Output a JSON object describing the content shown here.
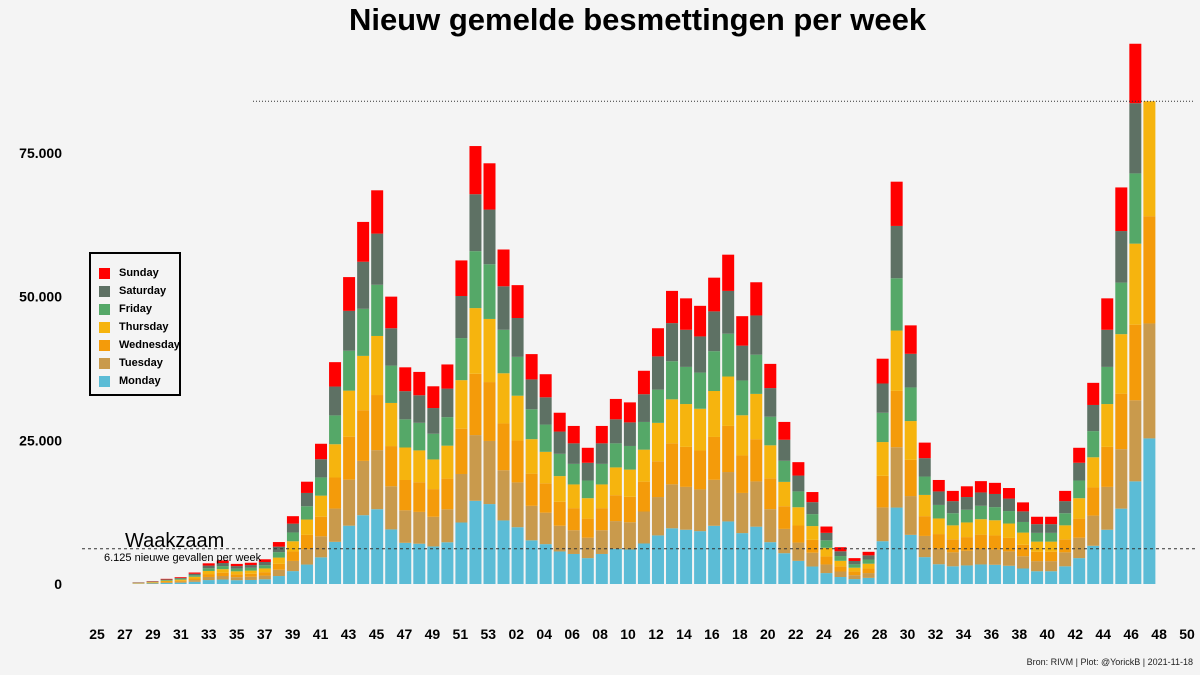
{
  "chart_data": {
    "type": "bar",
    "stacked": true,
    "title": "Nieuw gemelde besmettingen per week",
    "source": "Bron: RIVM | Plot: @YorickB |  2021-11-18",
    "ylim": [
      0,
      95000
    ],
    "y_ticks": [
      0,
      25000,
      50000,
      75000
    ],
    "y_tick_labels": [
      "0",
      "25.000",
      "50.000",
      "75.000"
    ],
    "x_tick_labels": [
      "25",
      "27",
      "29",
      "31",
      "33",
      "35",
      "37",
      "39",
      "41",
      "43",
      "45",
      "47",
      "49",
      "51",
      "53",
      "02",
      "04",
      "06",
      "08",
      "10",
      "12",
      "14",
      "16",
      "18",
      "20",
      "22",
      "24",
      "26",
      "28",
      "30",
      "32",
      "34",
      "36",
      "38",
      "40",
      "42",
      "44",
      "46",
      "48",
      "50"
    ],
    "reference_lines": [
      {
        "name": "waakzaam",
        "label": "Waakzaam",
        "sublabel": "6.125 nieuwe gevallen per week",
        "value": 6125,
        "style": "dashed"
      },
      {
        "name": "max",
        "value": 84000,
        "style": "dotted"
      }
    ],
    "legend_position": "left",
    "series": [
      {
        "name": "Monday",
        "color": "#5bbcd6"
      },
      {
        "name": "Tuesday",
        "color": "#c99a4c"
      },
      {
        "name": "Wednesday",
        "color": "#f49b0a"
      },
      {
        "name": "Thursday",
        "color": "#f6b40e"
      },
      {
        "name": "Friday",
        "color": "#55a868"
      },
      {
        "name": "Saturday",
        "color": "#5e7164"
      },
      {
        "name": "Sunday",
        "color": "#ff0000"
      }
    ],
    "legend_order": [
      "Sunday",
      "Saturday",
      "Friday",
      "Thursday",
      "Wednesday",
      "Tuesday",
      "Monday"
    ],
    "weeks": [
      {
        "week": "27",
        "total": 300
      },
      {
        "week": "28",
        "total": 500
      },
      {
        "week": "29",
        "total": 900
      },
      {
        "week": "30",
        "total": 1200
      },
      {
        "week": "31",
        "total": 2000
      },
      {
        "week": "32",
        "total": 3600
      },
      {
        "week": "33",
        "total": 4100
      },
      {
        "week": "34",
        "total": 3500
      },
      {
        "week": "35",
        "total": 3700
      },
      {
        "week": "36",
        "total": 4300
      },
      {
        "week": "37",
        "total": 7300
      },
      {
        "week": "38",
        "total": 11800
      },
      {
        "week": "39",
        "total": 17800
      },
      {
        "week": "40",
        "total": 24400
      },
      {
        "week": "41",
        "total": 38600
      },
      {
        "week": "42",
        "total": 53400
      },
      {
        "week": "43",
        "total": 63000
      },
      {
        "week": "44",
        "total": 68500
      },
      {
        "week": "45",
        "total": 50000
      },
      {
        "week": "46",
        "total": 37700
      },
      {
        "week": "47",
        "total": 36900
      },
      {
        "week": "48",
        "total": 34400
      },
      {
        "week": "49",
        "total": 38200
      },
      {
        "week": "50",
        "total": 56300
      },
      {
        "week": "51",
        "total": 76200
      },
      {
        "week": "52",
        "total": 73200
      },
      {
        "week": "53",
        "total": 58200
      },
      {
        "week": "01",
        "total": 52000
      },
      {
        "week": "02",
        "total": 40000
      },
      {
        "week": "03",
        "total": 36500
      },
      {
        "week": "04",
        "total": 29800
      },
      {
        "week": "05",
        "total": 27500
      },
      {
        "week": "06",
        "total": 23700
      },
      {
        "week": "07",
        "total": 27500
      },
      {
        "week": "08",
        "total": 32200
      },
      {
        "week": "09",
        "total": 31600
      },
      {
        "week": "10",
        "total": 37100
      },
      {
        "week": "11",
        "total": 44500
      },
      {
        "week": "12",
        "total": 51000
      },
      {
        "week": "13",
        "total": 49700
      },
      {
        "week": "14",
        "total": 48400
      },
      {
        "week": "15",
        "total": 53300
      },
      {
        "week": "16",
        "total": 57300
      },
      {
        "week": "17",
        "total": 46600
      },
      {
        "week": "18",
        "total": 52500
      },
      {
        "week": "19",
        "total": 38300
      },
      {
        "week": "20",
        "total": 28200
      },
      {
        "week": "21",
        "total": 21200
      },
      {
        "week": "22",
        "total": 16000
      },
      {
        "week": "23",
        "total": 10000
      },
      {
        "week": "24",
        "total": 6400
      },
      {
        "week": "25",
        "total": 4500
      },
      {
        "week": "26",
        "total": 5600
      },
      {
        "week": "27",
        "total": 39200
      },
      {
        "week": "28",
        "total": 70000
      },
      {
        "week": "29",
        "total": 45000
      },
      {
        "week": "30",
        "total": 24600
      },
      {
        "week": "31",
        "total": 18100
      },
      {
        "week": "32",
        "total": 16200
      },
      {
        "week": "33",
        "total": 17000
      },
      {
        "week": "34",
        "total": 17900
      },
      {
        "week": "35",
        "total": 17600
      },
      {
        "week": "36",
        "total": 16700
      },
      {
        "week": "37",
        "total": 14200
      },
      {
        "week": "38",
        "total": 11700
      },
      {
        "week": "39",
        "total": 11700
      },
      {
        "week": "40",
        "total": 16200
      },
      {
        "week": "41",
        "total": 23700
      },
      {
        "week": "42",
        "total": 35000
      },
      {
        "week": "43",
        "total": 49700
      },
      {
        "week": "44",
        "total": 69000
      },
      {
        "week": "45",
        "total": 94000
      },
      {
        "week": "46",
        "total": 84000,
        "partial": true
      }
    ]
  }
}
